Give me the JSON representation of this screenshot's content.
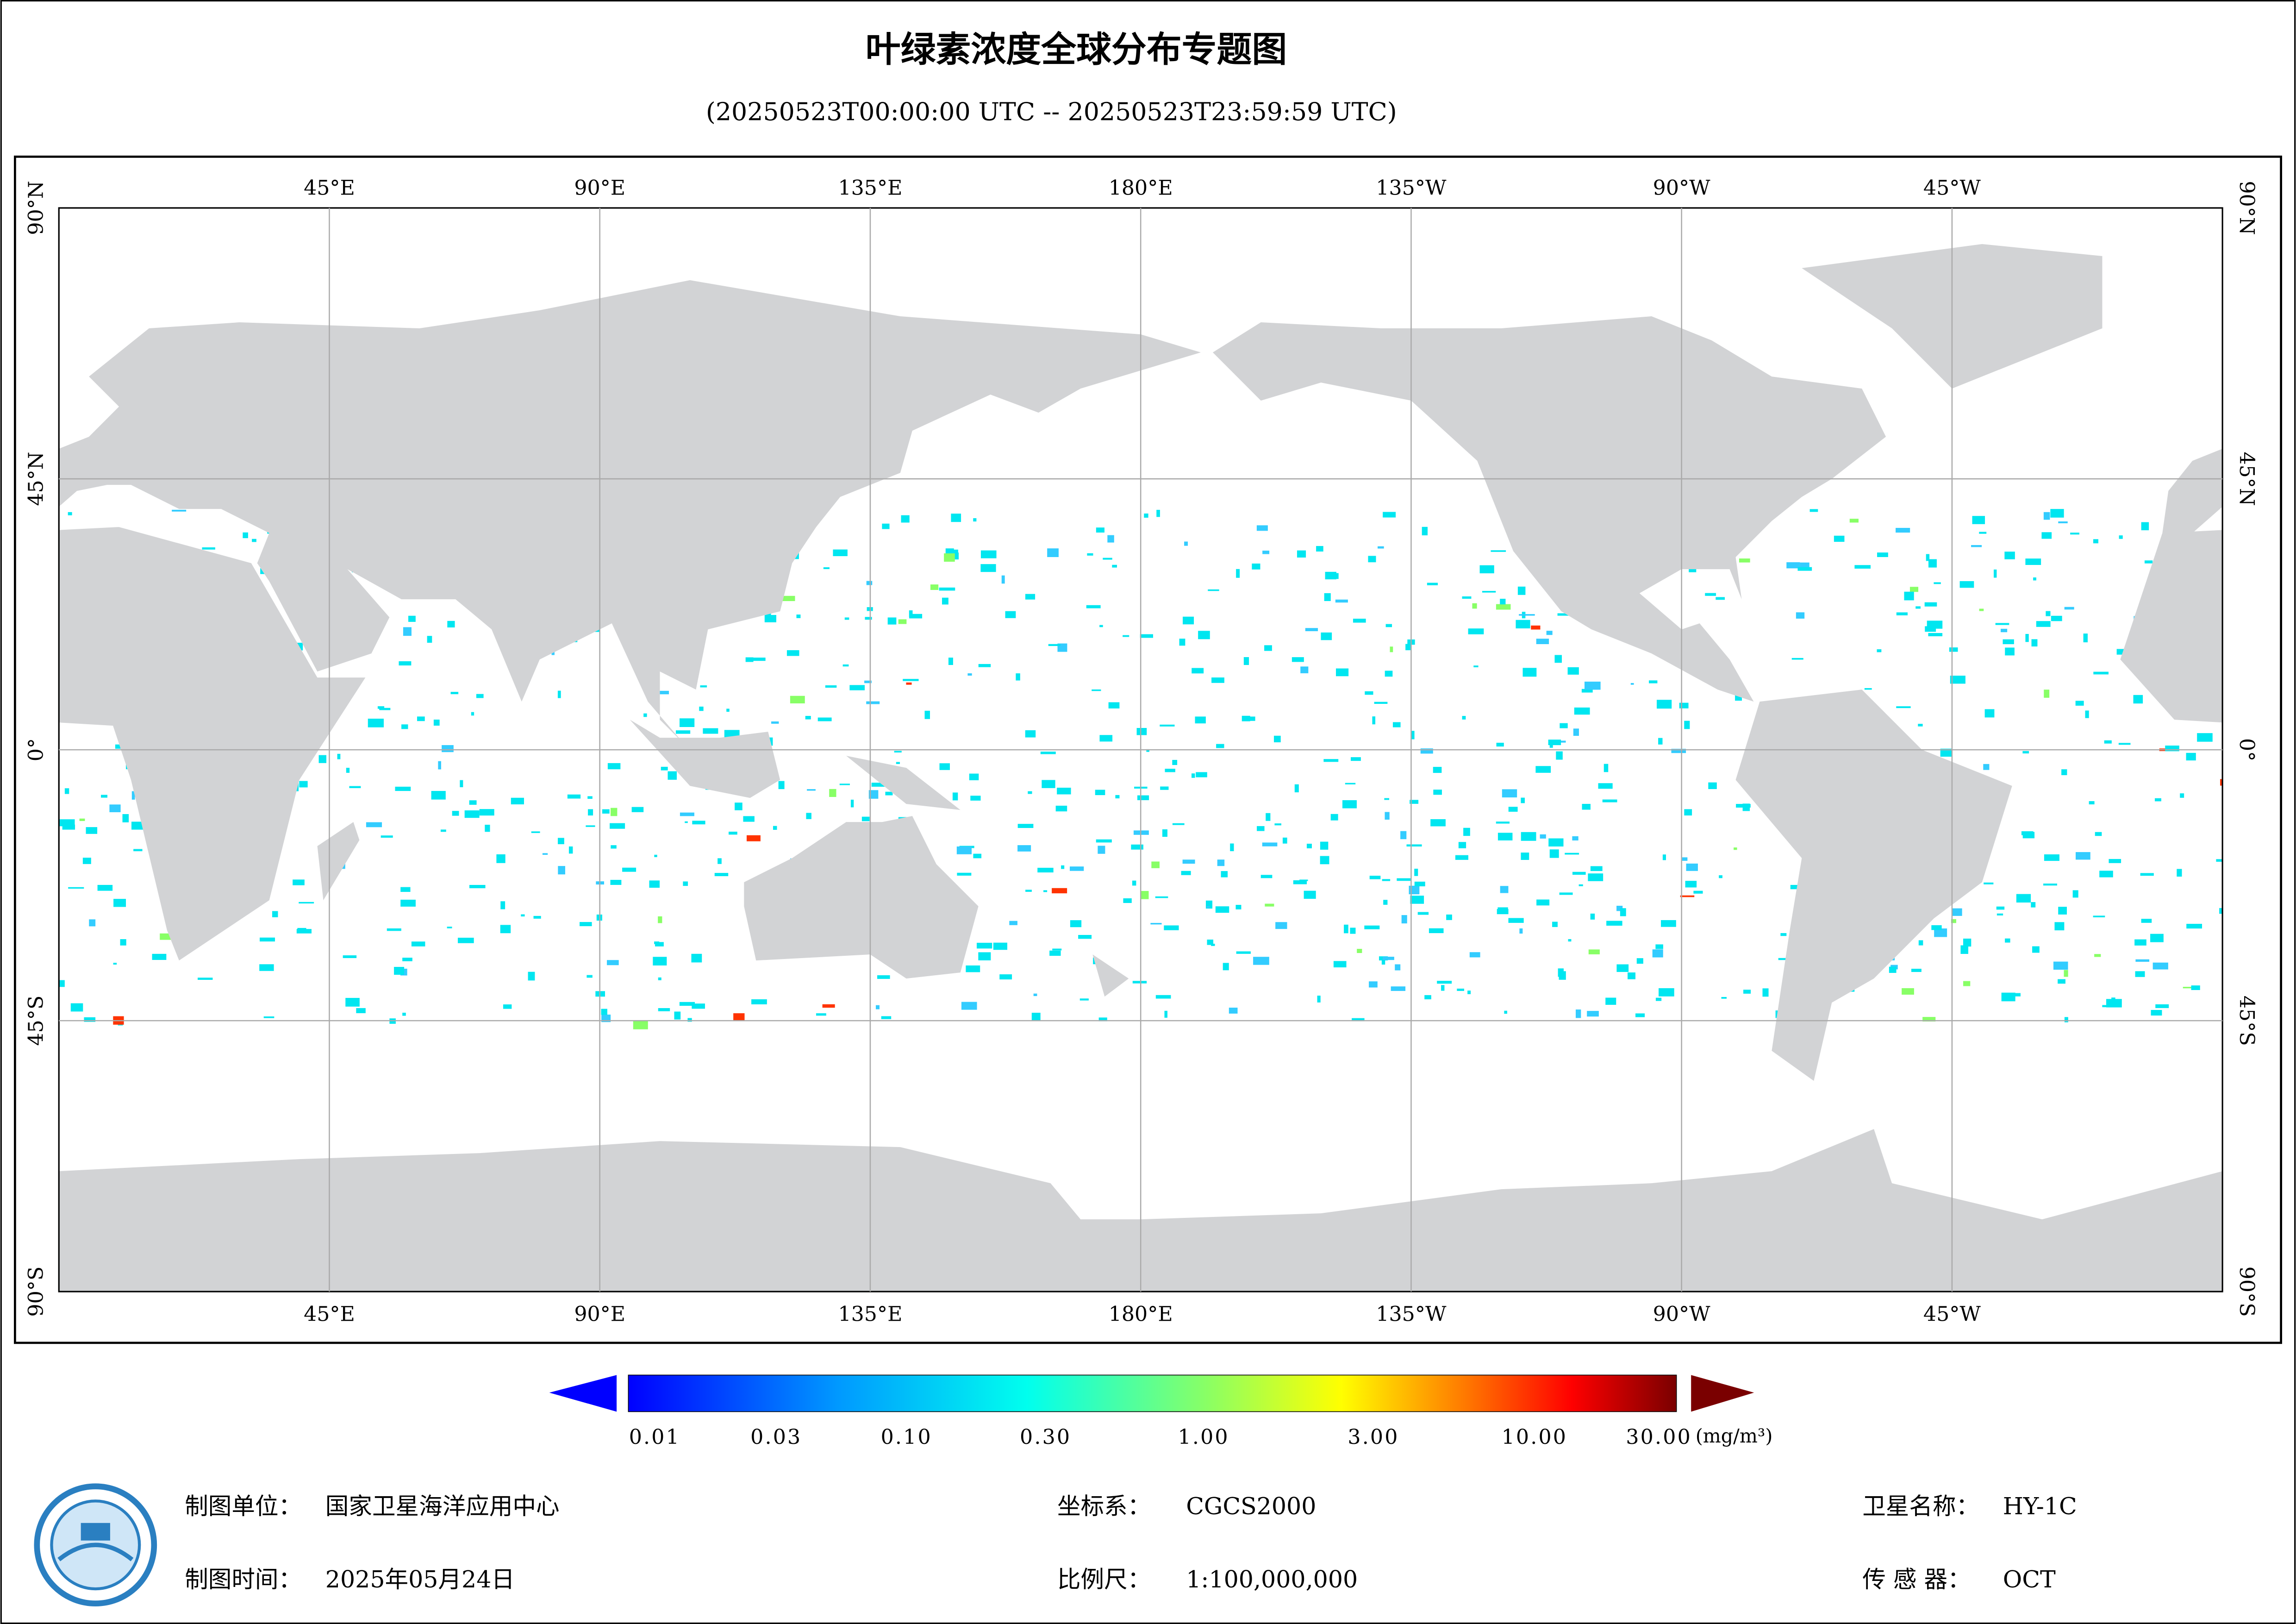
{
  "header": {
    "title": "叶绿素浓度全球分布专题图",
    "subtitle": "(20250523T00:00:00 UTC -- 20250523T23:59:59 UTC)"
  },
  "graticule": {
    "lon_labels": [
      "45°E",
      "90°E",
      "135°E",
      "180°E",
      "135°W",
      "90°W",
      "45°W"
    ],
    "lat_labels": [
      "90°N",
      "45°N",
      "0°",
      "45°S",
      "90°S"
    ]
  },
  "colorbar": {
    "labels": [
      "0.01",
      "0.03",
      "0.10",
      "0.30",
      "1.00",
      "3.00",
      "10.00",
      "30.00"
    ],
    "unit": "(mg/m³)"
  },
  "footer": {
    "left": [
      {
        "key": "制图单位：",
        "value": "国家卫星海洋应用中心"
      },
      {
        "key": "制图时间：",
        "value": "2025年05月24日"
      }
    ],
    "middle": [
      {
        "key": "坐标系：",
        "value": "CGCS2000"
      },
      {
        "key": "比例尺：",
        "value": "1:100,000,000"
      }
    ],
    "right": [
      {
        "key": "卫星名称：",
        "value": "HY-1C"
      },
      {
        "key": "传 感 器：",
        "value": "OCT"
      }
    ]
  }
}
